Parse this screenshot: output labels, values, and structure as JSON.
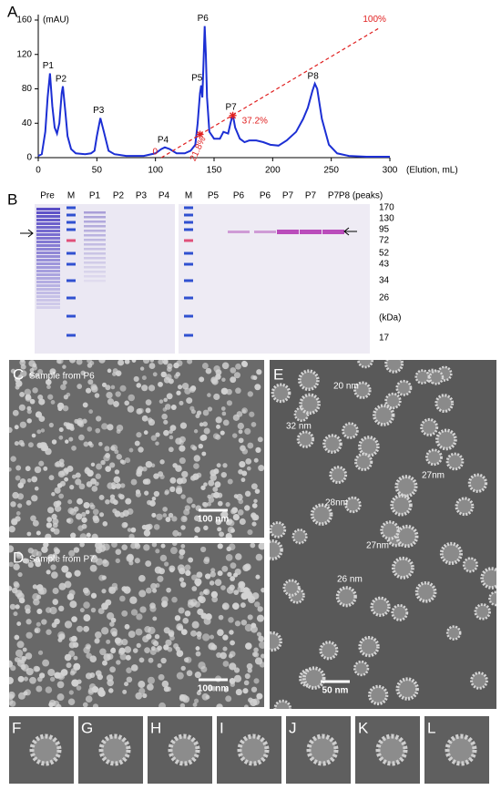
{
  "chart_data": {
    "type": "line",
    "panel_label": "A",
    "ylabel": "(mAU)",
    "xlabel": "(Elution, mL)",
    "xlim": [
      0,
      300
    ],
    "xticks": [
      0,
      50,
      100,
      150,
      200,
      250,
      300
    ],
    "ylim": [
      0,
      160
    ],
    "yticks": [
      0,
      40,
      80,
      120,
      160
    ],
    "series": [
      {
        "color": "#1c2fd4",
        "x": [
          0,
          3,
          6,
          8,
          10,
          12,
          14,
          16,
          18,
          20,
          21,
          23,
          25,
          28,
          32,
          40,
          45,
          48,
          50,
          53,
          56,
          60,
          65,
          75,
          90,
          100,
          105,
          108,
          112,
          118,
          125,
          130,
          134,
          136,
          138,
          139,
          140,
          141,
          142,
          143,
          144,
          146,
          150,
          155,
          158,
          162,
          164,
          166,
          168,
          172,
          176,
          180,
          186,
          192,
          198,
          205,
          212,
          220,
          226,
          230,
          234,
          236,
          238,
          242,
          248,
          255,
          265,
          280,
          300
        ],
        "values": [
          2,
          4,
          30,
          70,
          98,
          60,
          35,
          28,
          40,
          75,
          83,
          55,
          25,
          10,
          5,
          4,
          5,
          8,
          25,
          46,
          30,
          8,
          4,
          2,
          2,
          5,
          10,
          12,
          10,
          5,
          5,
          8,
          15,
          40,
          75,
          84,
          70,
          110,
          153,
          120,
          70,
          30,
          22,
          22,
          30,
          28,
          40,
          50,
          35,
          22,
          18,
          20,
          20,
          18,
          15,
          14,
          20,
          30,
          45,
          58,
          78,
          86,
          80,
          45,
          15,
          5,
          2,
          1,
          1
        ]
      }
    ],
    "peaks": [
      {
        "label": "P1",
        "x": 10,
        "y": 98
      },
      {
        "label": "P2",
        "x": 21,
        "y": 83
      },
      {
        "label": "P3",
        "x": 53,
        "y": 46
      },
      {
        "label": "P4",
        "x": 108,
        "y": 12
      },
      {
        "label": "P5",
        "x": 137,
        "y": 84
      },
      {
        "label": "P6",
        "x": 142,
        "y": 153
      },
      {
        "label": "P7",
        "x": 166,
        "y": 50
      },
      {
        "label": "P8",
        "x": 236,
        "y": 86
      }
    ],
    "gradient": {
      "color": "#e02020",
      "x": [
        105,
        290
      ],
      "values": [
        0,
        150
      ],
      "labels": [
        "0",
        "100%"
      ]
    },
    "gradient_points": [
      {
        "label": "21.8%",
        "x": 138,
        "y": 27
      },
      {
        "label": "37.2%",
        "x": 166,
        "y": 49
      }
    ]
  },
  "gel": {
    "panel_label": "B",
    "lanes": [
      "Pre",
      "M",
      "P1",
      "P2",
      "P3",
      "P4",
      "M",
      "P5",
      "P6",
      "P6",
      "P7",
      "P7",
      "P7",
      "P8 (peaks)"
    ],
    "markers": [
      "170",
      "130",
      "95",
      "72",
      "52",
      "43",
      "34",
      "26",
      "(kDa)",
      "17"
    ]
  },
  "panels": [
    {
      "label": "C",
      "caption": "Sample from P6",
      "scale_bar": "100 nm"
    },
    {
      "label": "D",
      "caption": "Sample from P7",
      "scale_bar": "100 nm"
    },
    {
      "label": "E",
      "scale_bar": "50 nm",
      "sizes": [
        "20 nm",
        "32 nm",
        "27nm",
        "28nm",
        "27nm",
        "26 nm"
      ]
    }
  ],
  "insets": [
    "F",
    "G",
    "H",
    "I",
    "J",
    "K",
    "L"
  ]
}
